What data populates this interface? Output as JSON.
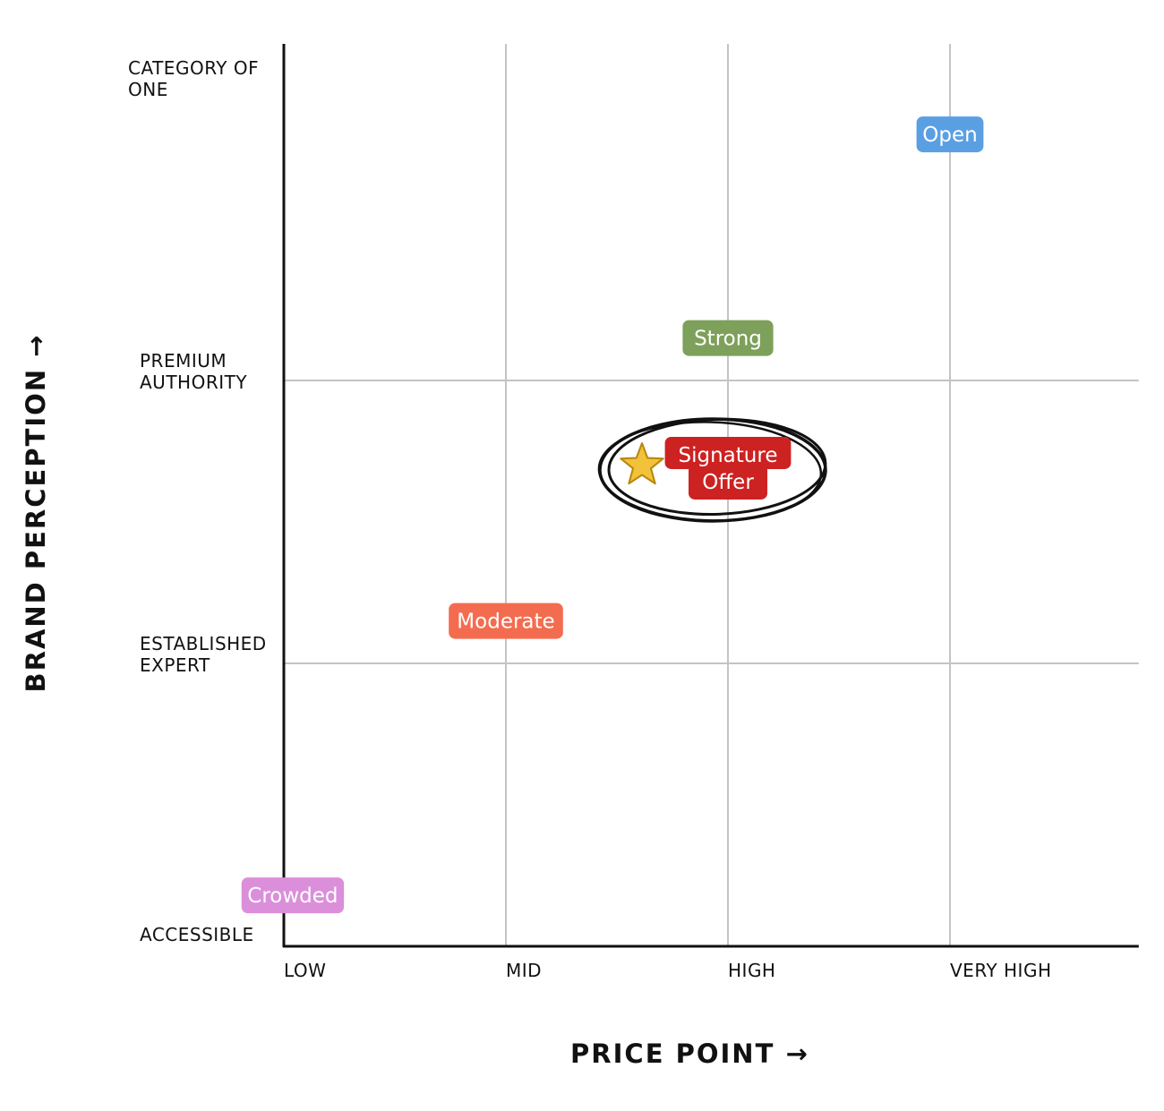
{
  "chart_data": {
    "type": "scatter",
    "xlabel": "PRICE POINT →",
    "ylabel": "BRAND PERCEPTION →",
    "x_ticks": [
      "LOW",
      "MID",
      "HIGH",
      "VERY HIGH"
    ],
    "y_ticks": [
      [
        "ACCESSIBLE"
      ],
      [
        "ESTABLISHED",
        "EXPERT"
      ],
      [
        "PREMIUM",
        "AUTHORITY"
      ],
      [
        "CATEGORY OF",
        "ONE"
      ]
    ],
    "xlim": [
      0,
      3.85
    ],
    "ylim": [
      0,
      3
    ],
    "grid": true,
    "points": [
      {
        "label": [
          "Open"
        ],
        "x": 3.0,
        "y": 2.87,
        "color": "#5b9fe3"
      },
      {
        "label": [
          "Strong"
        ],
        "x": 2.0,
        "y": 2.15,
        "color": "#7da05a"
      },
      {
        "label": [
          "Signature",
          "Offer"
        ],
        "x": 2.0,
        "y": 1.69,
        "color": "#cc2222",
        "highlight": true,
        "icon": "star-icon"
      },
      {
        "label": [
          "Moderate"
        ],
        "x": 1.0,
        "y": 1.15,
        "color": "#f46c4f"
      },
      {
        "label": [
          "Crowded"
        ],
        "x": 0.04,
        "y": 0.18,
        "color": "#db8fda"
      }
    ]
  }
}
